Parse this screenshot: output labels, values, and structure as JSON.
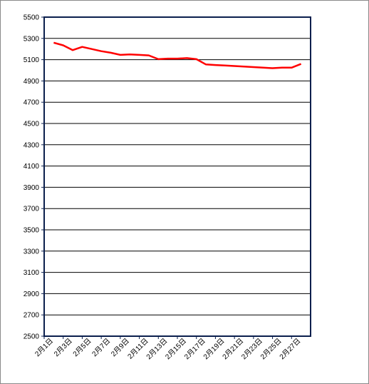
{
  "chart_data": {
    "type": "line",
    "title": "",
    "xlabel": "",
    "ylabel": "",
    "ylim": [
      2500,
      5500
    ],
    "y_ticks": [
      2500,
      2700,
      2900,
      3100,
      3300,
      3500,
      3700,
      3900,
      4100,
      4300,
      4500,
      4700,
      4900,
      5100,
      5300,
      5500
    ],
    "x_tick_labels": [
      "2月1日",
      "2月3日",
      "2月5日",
      "2月7日",
      "2月9日",
      "2月11日",
      "2月13日",
      "2月15日",
      "2月17日",
      "2月19日",
      "2月21日",
      "2月23日",
      "2月25日",
      "2月27日"
    ],
    "grid": true,
    "legend": "none",
    "series_color": "#ff0000",
    "series": [
      {
        "x": [
          "2月2日",
          "2月3日",
          "2月4日",
          "2月5日",
          "2月6日",
          "2月7日",
          "2月8日",
          "2月9日",
          "2月10日",
          "2月11日",
          "2月12日",
          "2月13日",
          "2月14日",
          "2月15日",
          "2月16日",
          "2月17日",
          "2月18日",
          "2月19日",
          "2月20日",
          "2月21日",
          "2月22日",
          "2月23日",
          "2月24日",
          "2月25日",
          "2月26日",
          "2月27日",
          "2月28日"
        ],
        "values": [
          5260,
          5235,
          5190,
          5220,
          5200,
          5180,
          5165,
          5145,
          5150,
          5145,
          5140,
          5105,
          5110,
          5110,
          5115,
          5105,
          5055,
          5050,
          5045,
          5040,
          5035,
          5030,
          5025,
          5020,
          5025,
          5025,
          5060
        ]
      }
    ]
  }
}
